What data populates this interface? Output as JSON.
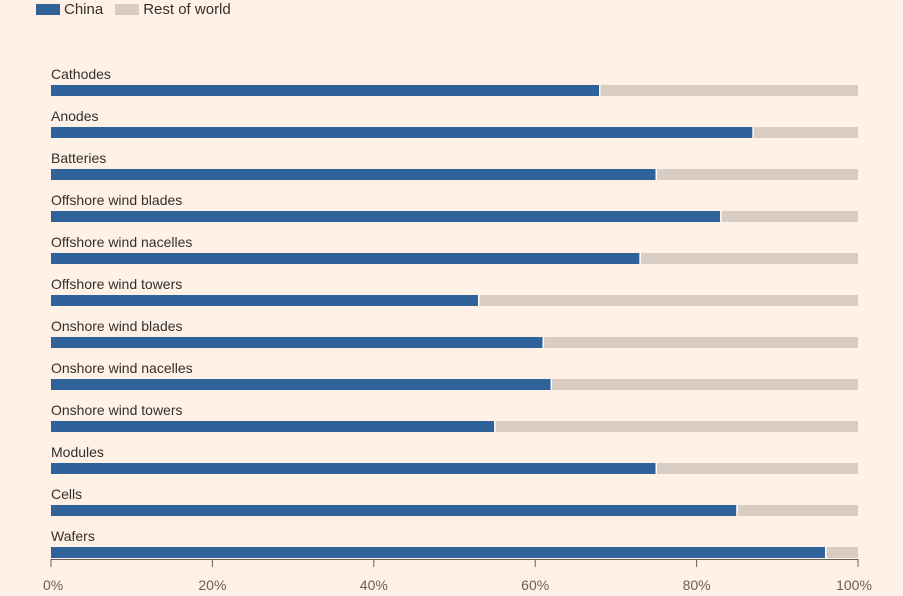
{
  "chart_data": {
    "type": "bar",
    "orientation": "horizontal",
    "stacked": true,
    "categories": [
      "Cathodes",
      "Anodes",
      "Batteries",
      "Offshore wind blades",
      "Offshore wind nacelles",
      "Offshore wind towers",
      "Onshore wind blades",
      "Onshore wind nacelles",
      "Onshore wind towers",
      "Modules",
      "Cells",
      "Wafers"
    ],
    "series": [
      {
        "name": "China",
        "color": "#2e6299",
        "values": [
          68,
          87,
          75,
          83,
          73,
          53,
          61,
          62,
          55,
          75,
          85,
          96
        ]
      },
      {
        "name": "Rest of world",
        "color": "#d9cdc3",
        "values": [
          32,
          13,
          25,
          17,
          27,
          47,
          39,
          38,
          45,
          25,
          15,
          4
        ]
      }
    ],
    "xlim": [
      0,
      100
    ],
    "xticks": [
      "0%",
      "20%",
      "40%",
      "60%",
      "80%",
      "100%"
    ],
    "legend_position": "top-left",
    "grid": false
  }
}
